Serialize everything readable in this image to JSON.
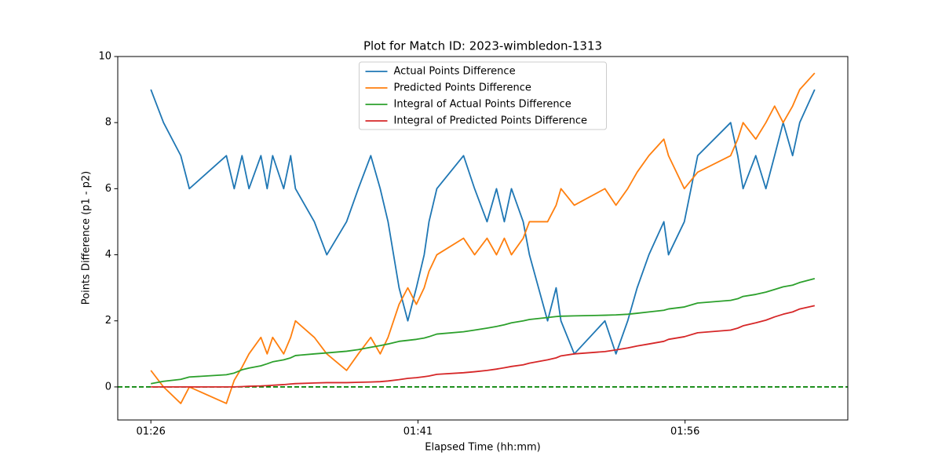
{
  "chart_data": {
    "type": "line",
    "title": "Plot for Match ID: 2023-wimbledon-1313",
    "xlabel": "Elapsed Time (hh:mm)",
    "ylabel": "Points Difference (p1 - p2)",
    "x": [
      86.0,
      86.71,
      87.68,
      88.16,
      90.24,
      90.68,
      91.12,
      91.51,
      92.18,
      92.53,
      92.84,
      93.46,
      93.85,
      94.12,
      95.18,
      95.88,
      96.99,
      97.65,
      98.35,
      98.88,
      99.32,
      99.94,
      100.43,
      100.91,
      101.35,
      101.62,
      102.06,
      103.56,
      104.18,
      104.88,
      105.41,
      105.85,
      106.25,
      106.91,
      107.26,
      108.28,
      108.76,
      109.03,
      109.78,
      111.5,
      112.12,
      112.78,
      113.31,
      113.97,
      114.81,
      115.07,
      115.96,
      116.71,
      118.56,
      118.96,
      119.26,
      119.97,
      120.54,
      121.03,
      121.51,
      122.04,
      122.44,
      123.28
    ],
    "series": [
      {
        "name": "Actual Points Difference",
        "color": "#1f77b4",
        "values": [
          9,
          8,
          7,
          6,
          7,
          6,
          7,
          6,
          7,
          6,
          7,
          6,
          7,
          6,
          5,
          4,
          5,
          6,
          7,
          6,
          5,
          3,
          2,
          3,
          4,
          5,
          6,
          7,
          6,
          5,
          6,
          5,
          6,
          5,
          4,
          2,
          3,
          2,
          1,
          2,
          1,
          2,
          3,
          4,
          5,
          4,
          5,
          7,
          8,
          7,
          6,
          7,
          6,
          7,
          8,
          7,
          8,
          9
        ]
      },
      {
        "name": "Predicted Points Difference",
        "color": "#ff7f0e",
        "values": [
          0.5,
          0,
          -0.5,
          0,
          -0.5,
          0.2,
          0.6,
          1,
          1.5,
          1,
          1.5,
          1,
          1.5,
          2,
          1.5,
          1,
          0.5,
          1,
          1.5,
          1,
          1.5,
          2.5,
          3,
          2.5,
          3,
          3.5,
          4,
          4.5,
          4,
          4.5,
          4,
          4.5,
          4,
          4.5,
          5,
          5,
          5.5,
          6,
          5.5,
          6,
          5.5,
          6,
          6.5,
          7,
          7.5,
          7,
          6,
          6.5,
          7,
          7.5,
          8,
          7.5,
          8,
          8.5,
          8,
          8.5,
          9,
          9.5
        ]
      },
      {
        "name": "Integral of Actual Points Difference",
        "color": "#2ca02c",
        "values": [
          0.1,
          0.17,
          0.23,
          0.3,
          0.37,
          0.42,
          0.52,
          0.57,
          0.64,
          0.7,
          0.76,
          0.82,
          0.88,
          0.95,
          1.0,
          1.03,
          1.08,
          1.13,
          1.2,
          1.25,
          1.3,
          1.38,
          1.41,
          1.44,
          1.48,
          1.52,
          1.6,
          1.67,
          1.72,
          1.78,
          1.83,
          1.88,
          1.94,
          2.0,
          2.04,
          2.1,
          2.13,
          2.14,
          2.15,
          2.17,
          2.18,
          2.2,
          2.23,
          2.27,
          2.32,
          2.36,
          2.42,
          2.54,
          2.62,
          2.67,
          2.74,
          2.8,
          2.87,
          2.95,
          3.03,
          3.08,
          3.16,
          3.28
        ]
      },
      {
        "name": "Integral of Predicted Points Difference",
        "color": "#d62728",
        "values": [
          0,
          0,
          0,
          0,
          0,
          0,
          0.01,
          0.02,
          0.03,
          0.04,
          0.05,
          0.07,
          0.09,
          0.1,
          0.12,
          0.13,
          0.13,
          0.14,
          0.15,
          0.16,
          0.18,
          0.22,
          0.26,
          0.28,
          0.31,
          0.33,
          0.38,
          0.43,
          0.46,
          0.5,
          0.54,
          0.58,
          0.62,
          0.67,
          0.72,
          0.82,
          0.88,
          0.94,
          1.0,
          1.07,
          1.12,
          1.18,
          1.24,
          1.3,
          1.38,
          1.44,
          1.52,
          1.64,
          1.72,
          1.78,
          1.85,
          1.94,
          2.02,
          2.12,
          2.2,
          2.27,
          2.36,
          2.46
        ]
      }
    ],
    "reference_line": {
      "value": 0,
      "color": "green",
      "dashed": true
    },
    "xlim": [
      84.14,
      125.14
    ],
    "xticks": [
      {
        "value": 86,
        "label": "01:26"
      },
      {
        "value": 101,
        "label": "01:41"
      },
      {
        "value": 116,
        "label": "01:56"
      }
    ],
    "ylim": [
      -1,
      10
    ],
    "yticks": [
      0,
      2,
      4,
      6,
      8,
      10
    ],
    "grid": false,
    "legend": "upper center"
  }
}
